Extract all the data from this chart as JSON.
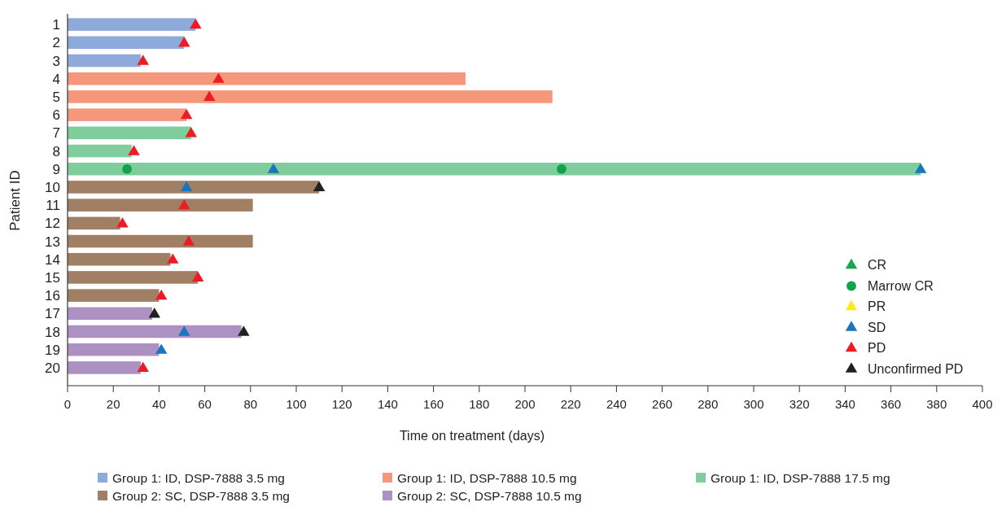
{
  "chart_data": {
    "type": "bar",
    "orientation": "horizontal",
    "xlabel": "Time on treatment (days)",
    "ylabel": "Patient ID",
    "categories": [
      "1",
      "2",
      "3",
      "4",
      "5",
      "6",
      "7",
      "8",
      "9",
      "10",
      "11",
      "12",
      "13",
      "14",
      "15",
      "16",
      "17",
      "18",
      "19",
      "20"
    ],
    "xlim": [
      0,
      400
    ],
    "xticks": [
      0,
      20,
      40,
      60,
      80,
      100,
      120,
      140,
      160,
      180,
      200,
      220,
      240,
      260,
      280,
      300,
      320,
      340,
      360,
      380,
      400
    ],
    "grid": false,
    "legend": "bottom",
    "series": [
      {
        "name": "Group 1: ID, DSP-7888 3.5 mg",
        "color": "#8eaadb",
        "values": [
          56,
          51,
          32,
          null,
          null,
          null,
          null,
          null,
          null,
          null,
          null,
          null,
          null,
          null,
          null,
          null,
          null,
          null,
          null,
          null
        ]
      },
      {
        "name": "Group 1: ID, DSP-7888 10.5 mg",
        "color": "#f4977a",
        "values": [
          null,
          null,
          null,
          174,
          212,
          52,
          null,
          null,
          null,
          null,
          null,
          null,
          null,
          null,
          null,
          null,
          null,
          null,
          null,
          null
        ]
      },
      {
        "name": "Group 1: ID, DSP-7888 17.5 mg",
        "color": "#7fcc9d",
        "values": [
          null,
          null,
          null,
          null,
          null,
          null,
          54,
          28,
          373,
          null,
          null,
          null,
          null,
          null,
          null,
          null,
          null,
          null,
          null,
          null
        ]
      },
      {
        "name": "Group 2: SC, DSP-7888 3.5 mg",
        "color": "#a07f65",
        "values": [
          null,
          null,
          null,
          null,
          null,
          null,
          null,
          null,
          null,
          110,
          81,
          23,
          81,
          45,
          57,
          40,
          null,
          null,
          null,
          null
        ]
      },
      {
        "name": "Group 2: SC, DSP-7888 10.5 mg",
        "color": "#ad91c3",
        "values": [
          null,
          null,
          null,
          null,
          null,
          null,
          null,
          null,
          null,
          null,
          null,
          null,
          null,
          null,
          null,
          null,
          37,
          76,
          40,
          32
        ]
      },
      {
        "type": "scatter",
        "name": "CR",
        "color": "#1aa64a",
        "marker": "triangle",
        "values": [
          null,
          null,
          null,
          null,
          null,
          null,
          null,
          null,
          null,
          null,
          null,
          null,
          null,
          null,
          null,
          null,
          null,
          null,
          null,
          null
        ]
      },
      {
        "type": "scatter",
        "name": "Marrow CR",
        "color": "#12a34a",
        "marker": "circle",
        "x": [
          "9",
          "9"
        ],
        "values": [
          26,
          216
        ]
      },
      {
        "type": "scatter",
        "name": "PR",
        "color": "#ffeb1a",
        "marker": "triangle",
        "values": [
          null,
          null,
          null,
          null,
          null,
          null,
          null,
          null,
          null,
          null,
          null,
          null,
          null,
          null,
          null,
          null,
          null,
          null,
          null,
          null
        ]
      },
      {
        "type": "scatter",
        "name": "SD",
        "color": "#1a75bc",
        "marker": "triangle",
        "x": [
          "9",
          "9",
          "10",
          "18",
          "19"
        ],
        "values": [
          90,
          373,
          52,
          51,
          41
        ]
      },
      {
        "type": "scatter",
        "name": "PD",
        "color": "#ed1c24",
        "marker": "triangle",
        "x": [
          "1",
          "2",
          "3",
          "4",
          "5",
          "6",
          "7",
          "8",
          "11",
          "12",
          "13",
          "14",
          "15",
          "16",
          "20"
        ],
        "values": [
          56,
          51,
          33,
          66,
          62,
          52,
          54,
          29,
          51,
          24,
          53,
          46,
          57,
          41,
          33
        ]
      },
      {
        "type": "scatter",
        "name": "Unconfirmed PD",
        "color": "#231f20",
        "marker": "triangle",
        "x": [
          "10",
          "17",
          "18"
        ],
        "values": [
          110,
          38,
          77
        ]
      }
    ]
  }
}
